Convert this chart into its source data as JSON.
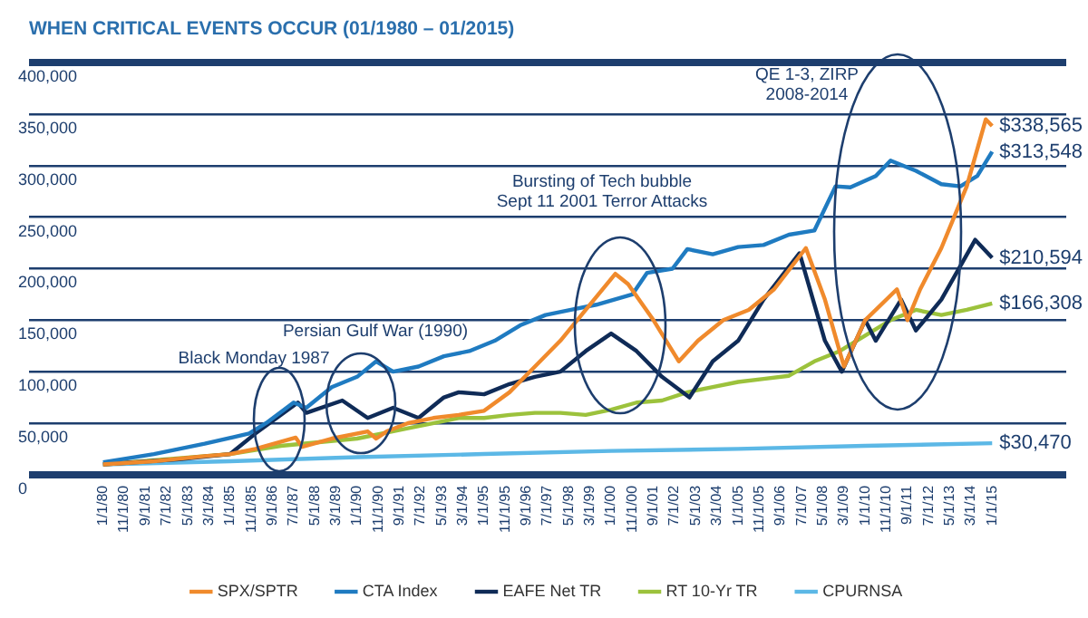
{
  "chart_data": {
    "type": "line",
    "title": "WHEN CRITICAL EVENTS OCCUR (01/1980 – 01/2015)",
    "xlim": [
      "1977-02",
      "2017-12"
    ],
    "xticks": [
      {
        "value": "1980-01",
        "label": "1/1/80"
      },
      {
        "value": "1980-11",
        "label": "11/1/80"
      },
      {
        "value": "1981-09",
        "label": "9/1/81"
      },
      {
        "value": "1982-07",
        "label": "7/1/82"
      },
      {
        "value": "1983-05",
        "label": "5/1/83"
      },
      {
        "value": "1984-03",
        "label": "3/1/84"
      },
      {
        "value": "1985-01",
        "label": "1/1/85"
      },
      {
        "value": "1985-11",
        "label": "11/1/85"
      },
      {
        "value": "1986-09",
        "label": "9/1/86"
      },
      {
        "value": "1987-07",
        "label": "7/1/87"
      },
      {
        "value": "1988-05",
        "label": "5/1/88"
      },
      {
        "value": "1989-03",
        "label": "3/1/89"
      },
      {
        "value": "1990-01",
        "label": "1/1/90"
      },
      {
        "value": "1990-11",
        "label": "11/1/90"
      },
      {
        "value": "1991-09",
        "label": "9/1/91"
      },
      {
        "value": "1992-07",
        "label": "7/1/92"
      },
      {
        "value": "1993-05",
        "label": "5/1/93"
      },
      {
        "value": "1994-03",
        "label": "3/1/94"
      },
      {
        "value": "1995-01",
        "label": "1/1/95"
      },
      {
        "value": "1995-11",
        "label": "11/1/95"
      },
      {
        "value": "1996-09",
        "label": "9/1/96"
      },
      {
        "value": "1997-07",
        "label": "7/1/97"
      },
      {
        "value": "1998-05",
        "label": "5/1/98"
      },
      {
        "value": "1999-03",
        "label": "3/1/99"
      },
      {
        "value": "2000-01",
        "label": "1/1/00"
      },
      {
        "value": "2000-11",
        "label": "11/1/00"
      },
      {
        "value": "2001-09",
        "label": "9/1/01"
      },
      {
        "value": "2002-07",
        "label": "7/1/02"
      },
      {
        "value": "2003-05",
        "label": "5/1/03"
      },
      {
        "value": "2004-03",
        "label": "3/1/04"
      },
      {
        "value": "2005-01",
        "label": "1/1/05"
      },
      {
        "value": "2005-11",
        "label": "11/1/05"
      },
      {
        "value": "2006-09",
        "label": "9/1/06"
      },
      {
        "value": "2007-07",
        "label": "7/1/07"
      },
      {
        "value": "2008-05",
        "label": "5/1/08"
      },
      {
        "value": "2009-03",
        "label": "3/1/09"
      },
      {
        "value": "2010-01",
        "label": "1/1/10"
      },
      {
        "value": "2010-11",
        "label": "11/1/10"
      },
      {
        "value": "2011-09",
        "label": "9/1/11"
      },
      {
        "value": "2012-07",
        "label": "7/1/12"
      },
      {
        "value": "2013-05",
        "label": "5/1/13"
      },
      {
        "value": "2014-03",
        "label": "3/1/14"
      },
      {
        "value": "2015-01",
        "label": "1/1/15"
      }
    ],
    "ylim": [
      0,
      400000
    ],
    "yticks": [
      0,
      {
        "value": 50000,
        "label": "50,000"
      },
      {
        "value": 100000,
        "label": "100,000"
      },
      {
        "value": 150000,
        "label": "150,000"
      },
      {
        "value": 200000,
        "label": "200,000"
      },
      {
        "value": 250000,
        "label": "250,000"
      },
      {
        "value": 300000,
        "label": "300,000"
      },
      {
        "value": 350000,
        "label": "350,000"
      },
      {
        "value": 400000,
        "label": "400,000"
      }
    ],
    "grid": "y",
    "legend": "bottom",
    "marker": "none",
    "line_style": "solid",
    "series": [
      {
        "name": "SPX/SPTR",
        "color": "#f08a2c",
        "x": [
          "1980-01",
          "1982-01",
          "1984-01",
          "1985-01",
          "1986-01",
          "1987-08",
          "1987-11",
          "1989-01",
          "1990-06",
          "1990-10",
          "1991-03",
          "1992-01",
          "1993-01",
          "1994-01",
          "1995-01",
          "1996-01",
          "1997-01",
          "1998-01",
          "1999-01",
          "2000-03",
          "2000-09",
          "2001-09",
          "2002-09",
          "2003-06",
          "2004-06",
          "2005-06",
          "2006-06",
          "2007-09",
          "2008-06",
          "2009-03",
          "2010-01",
          "2011-04",
          "2011-09",
          "2012-03",
          "2013-01",
          "2014-01",
          "2014-10",
          "2015-01"
        ],
        "values": [
          10000,
          13000,
          18000,
          20000,
          25000,
          36000,
          27000,
          35000,
          42000,
          35000,
          42000,
          50000,
          55000,
          58000,
          62000,
          80000,
          105000,
          130000,
          160000,
          195000,
          185000,
          150000,
          110000,
          130000,
          150000,
          160000,
          180000,
          220000,
          170000,
          105000,
          150000,
          180000,
          150000,
          180000,
          220000,
          280000,
          345000,
          338565
        ],
        "value_labels": [
          null,
          null,
          null,
          null,
          null,
          null,
          null,
          null,
          null,
          null,
          null,
          null,
          null,
          null,
          null,
          null,
          null,
          null,
          null,
          null,
          null,
          null,
          null,
          null,
          null,
          null,
          null,
          null,
          null,
          null,
          null,
          null,
          null,
          null,
          null,
          null,
          null,
          "$338,565"
        ]
      },
      {
        "name": "CTA Index",
        "color": "#1f7bc1",
        "x": [
          "1980-01",
          "1982-01",
          "1984-01",
          "1985-10",
          "1986-06",
          "1987-07",
          "1988-01",
          "1989-01",
          "1990-01",
          "1990-10",
          "1991-06",
          "1992-06",
          "1993-06",
          "1994-06",
          "1995-06",
          "1996-06",
          "1997-06",
          "1998-06",
          "1999-06",
          "2000-11",
          "2001-06",
          "2002-06",
          "2003-01",
          "2004-01",
          "2005-01",
          "2006-01",
          "2007-01",
          "2008-01",
          "2008-11",
          "2009-06",
          "2010-06",
          "2011-01",
          "2012-01",
          "2013-01",
          "2013-10",
          "2014-06",
          "2015-01"
        ],
        "values": [
          12000,
          20000,
          30000,
          40000,
          50000,
          70000,
          65000,
          85000,
          95000,
          110000,
          100000,
          105000,
          115000,
          120000,
          130000,
          145000,
          155000,
          160000,
          165000,
          175000,
          196000,
          200000,
          219000,
          214000,
          221000,
          223000,
          233000,
          237000,
          280000,
          279000,
          290000,
          305000,
          295000,
          282000,
          280000,
          290000,
          313548
        ],
        "value_labels": [
          null,
          null,
          null,
          null,
          null,
          null,
          null,
          null,
          null,
          null,
          null,
          null,
          null,
          null,
          null,
          null,
          null,
          null,
          null,
          null,
          null,
          null,
          null,
          null,
          null,
          null,
          null,
          null,
          null,
          null,
          null,
          null,
          null,
          null,
          null,
          null,
          "$313,548"
        ]
      },
      {
        "name": "EAFE Net TR",
        "color": "#0f2b57",
        "x": [
          "1980-01",
          "1983-01",
          "1985-01",
          "1986-01",
          "1987-09",
          "1988-01",
          "1989-06",
          "1990-06",
          "1991-06",
          "1992-06",
          "1993-06",
          "1994-01",
          "1995-01",
          "1996-01",
          "1997-01",
          "1998-01",
          "1999-01",
          "2000-01",
          "2001-01",
          "2002-01",
          "2003-02",
          "2004-01",
          "2005-01",
          "2006-01",
          "2007-06",
          "2008-06",
          "2009-02",
          "2010-01",
          "2010-06",
          "2011-06",
          "2012-01",
          "2013-01",
          "2014-05",
          "2015-01"
        ],
        "values": [
          10000,
          15000,
          20000,
          40000,
          70000,
          60000,
          72000,
          55000,
          65000,
          55000,
          75000,
          80000,
          78000,
          88000,
          95000,
          100000,
          120000,
          137000,
          120000,
          95000,
          75000,
          110000,
          130000,
          170000,
          215000,
          130000,
          100000,
          150000,
          130000,
          170000,
          140000,
          170000,
          228000,
          210594
        ],
        "value_labels": [
          null,
          null,
          null,
          null,
          null,
          null,
          null,
          null,
          null,
          null,
          null,
          null,
          null,
          null,
          null,
          null,
          null,
          null,
          null,
          null,
          null,
          null,
          null,
          null,
          null,
          null,
          null,
          null,
          null,
          null,
          null,
          null,
          null,
          "$210,594"
        ]
      },
      {
        "name": "RT 10-Yr TR",
        "color": "#9cc23c",
        "x": [
          "1980-01",
          "1985-01",
          "1987-01",
          "1990-01",
          "1992-01",
          "1994-01",
          "1995-01",
          "1996-01",
          "1997-01",
          "1998-01",
          "1999-01",
          "2000-01",
          "2001-01",
          "2002-01",
          "2003-01",
          "2004-01",
          "2005-01",
          "2006-01",
          "2007-01",
          "2008-01",
          "2009-01",
          "2010-01",
          "2011-01",
          "2012-01",
          "2013-01",
          "2014-01",
          "2015-01"
        ],
        "values": [
          10000,
          20000,
          28000,
          35000,
          45000,
          55000,
          55000,
          58000,
          60000,
          60000,
          58000,
          63000,
          70000,
          72000,
          80000,
          85000,
          90000,
          93000,
          96000,
          110000,
          120000,
          135000,
          150000,
          160000,
          155000,
          160000,
          166308
        ],
        "value_labels": [
          null,
          null,
          null,
          null,
          null,
          null,
          null,
          null,
          null,
          null,
          null,
          null,
          null,
          null,
          null,
          null,
          null,
          null,
          null,
          null,
          null,
          null,
          null,
          null,
          null,
          null,
          "$166,308"
        ]
      },
      {
        "name": "CPURNSA",
        "color": "#5cb8e6",
        "x": [
          "1980-01",
          "1985-01",
          "1990-01",
          "1995-01",
          "2000-01",
          "2005-01",
          "2010-01",
          "2015-01"
        ],
        "values": [
          10000,
          13000,
          17000,
          20000,
          23000,
          25000,
          28000,
          30470
        ],
        "value_labels": [
          null,
          null,
          null,
          null,
          null,
          null,
          null,
          "$30,470"
        ]
      }
    ],
    "annotations": [
      "Black Monday 1987",
      "Persian Gulf War (1990)",
      "Bursting of Tech bubble\nSept 11 2001 Terror Attacks",
      "QE 1-3, ZIRP\n2008-2014"
    ]
  }
}
